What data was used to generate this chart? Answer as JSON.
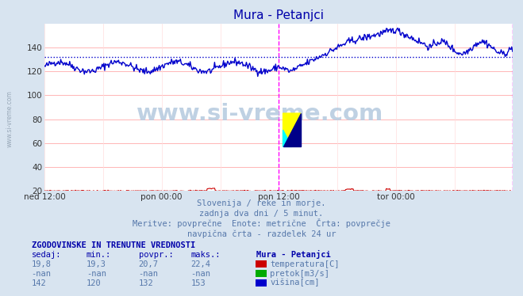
{
  "title": "Mura - Petanjci",
  "bg_color": "#d8e4f0",
  "plot_bg_color": "#ffffff",
  "grid_color_h": "#ffaaaa",
  "grid_color_v": "#ffdddd",
  "ylim": [
    20,
    160
  ],
  "yticks": [
    20,
    40,
    60,
    80,
    100,
    120,
    140
  ],
  "xlabel_ticks": [
    "ned 12:00",
    "pon 00:00",
    "pon 12:00",
    "tor 00:00"
  ],
  "avg_line_y": 132,
  "avg_line_color": "#0000cc",
  "temp_color": "#cc0000",
  "visina_color": "#0000cc",
  "pretok_color": "#00aa00",
  "watermark_text": "www.si-vreme.com",
  "subtitle1": "Slovenija / reke in morje.",
  "subtitle2": "zadnja dva dni / 5 minut.",
  "subtitle3": "Meritve: povprečne  Enote: metrične  Črta: povprečje",
  "subtitle4": "navpična črta - razdelek 24 ur",
  "table_header": "ZGODOVINSKE IN TRENUTNE VREDNOSTI",
  "col_headers": [
    "sedaj:",
    "min.:",
    "povpr.:",
    "maks.:",
    "Mura - Petanjci"
  ],
  "row1": [
    "19,8",
    "19,3",
    "20,7",
    "22,4"
  ],
  "row2": [
    "-nan",
    "-nan",
    "-nan",
    "-nan"
  ],
  "row3": [
    "142",
    "120",
    "132",
    "153"
  ],
  "legend_labels": [
    "temperatura[C]",
    "pretok[m3/s]",
    "višina[cm]"
  ],
  "legend_colors": [
    "#cc0000",
    "#00aa00",
    "#0000cc"
  ],
  "vline_color": "#ff00ff",
  "sidebar_text": "www.si-vreme.com",
  "n_points": 576
}
